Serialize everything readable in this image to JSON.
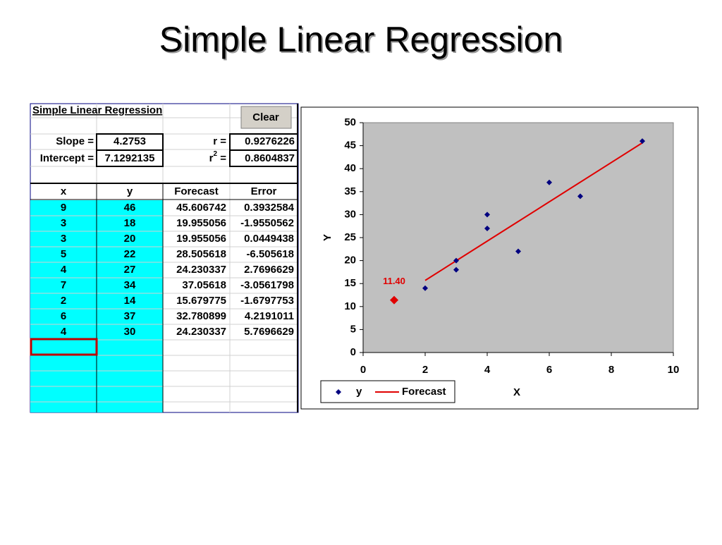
{
  "title": "Simple Linear Regression",
  "sheet": {
    "title": "Simple Linear Regression",
    "button": "Clear",
    "slope_label": "Slope =",
    "slope": 4.2753,
    "intercept_label": "Intercept =",
    "intercept": 7.1292135,
    "r_label": "r =",
    "r": 0.9276226,
    "r2_label": [
      "r",
      "2",
      " ="
    ],
    "r2": 0.8604837,
    "headers": [
      "x",
      "y",
      "Forecast",
      "Error"
    ],
    "rows": [
      [
        9,
        46,
        45.606742,
        0.3932584
      ],
      [
        3,
        18,
        19.955056,
        -1.9550562
      ],
      [
        3,
        20,
        19.955056,
        0.0449438
      ],
      [
        5,
        22,
        28.505618,
        -6.505618
      ],
      [
        4,
        27,
        24.230337,
        2.7696629
      ],
      [
        7,
        34,
        37.05618,
        -3.0561798
      ],
      [
        2,
        14,
        15.679775,
        -1.6797753
      ],
      [
        6,
        37,
        32.780899,
        4.2191011
      ],
      [
        4,
        30,
        24.230337,
        5.7696629
      ]
    ]
  },
  "chart_data": {
    "type": "scatter",
    "x": [
      9,
      3,
      3,
      5,
      4,
      7,
      2,
      6,
      4
    ],
    "series": [
      {
        "name": "y",
        "color": "#000080",
        "values": [
          46,
          18,
          20,
          22,
          27,
          34,
          14,
          37,
          30
        ]
      },
      {
        "name": "Forecast",
        "color": "#e00000",
        "values": [
          45.606742,
          19.955056,
          19.955056,
          28.505618,
          24.230337,
          37.05618,
          15.679775,
          32.780899,
          24.230337
        ]
      }
    ],
    "annotation": {
      "x": 1,
      "value": 11.4,
      "label": "11.40",
      "color": "#e00000"
    },
    "xlabel": "X",
    "ylabel": "Y",
    "xlim": [
      0,
      10
    ],
    "xticks": [
      0,
      2,
      4,
      6,
      8,
      10
    ],
    "ylim": [
      0,
      50
    ],
    "yticks": [
      0,
      5,
      10,
      15,
      20,
      25,
      30,
      35,
      40,
      45,
      50
    ],
    "legend": "bottom"
  }
}
